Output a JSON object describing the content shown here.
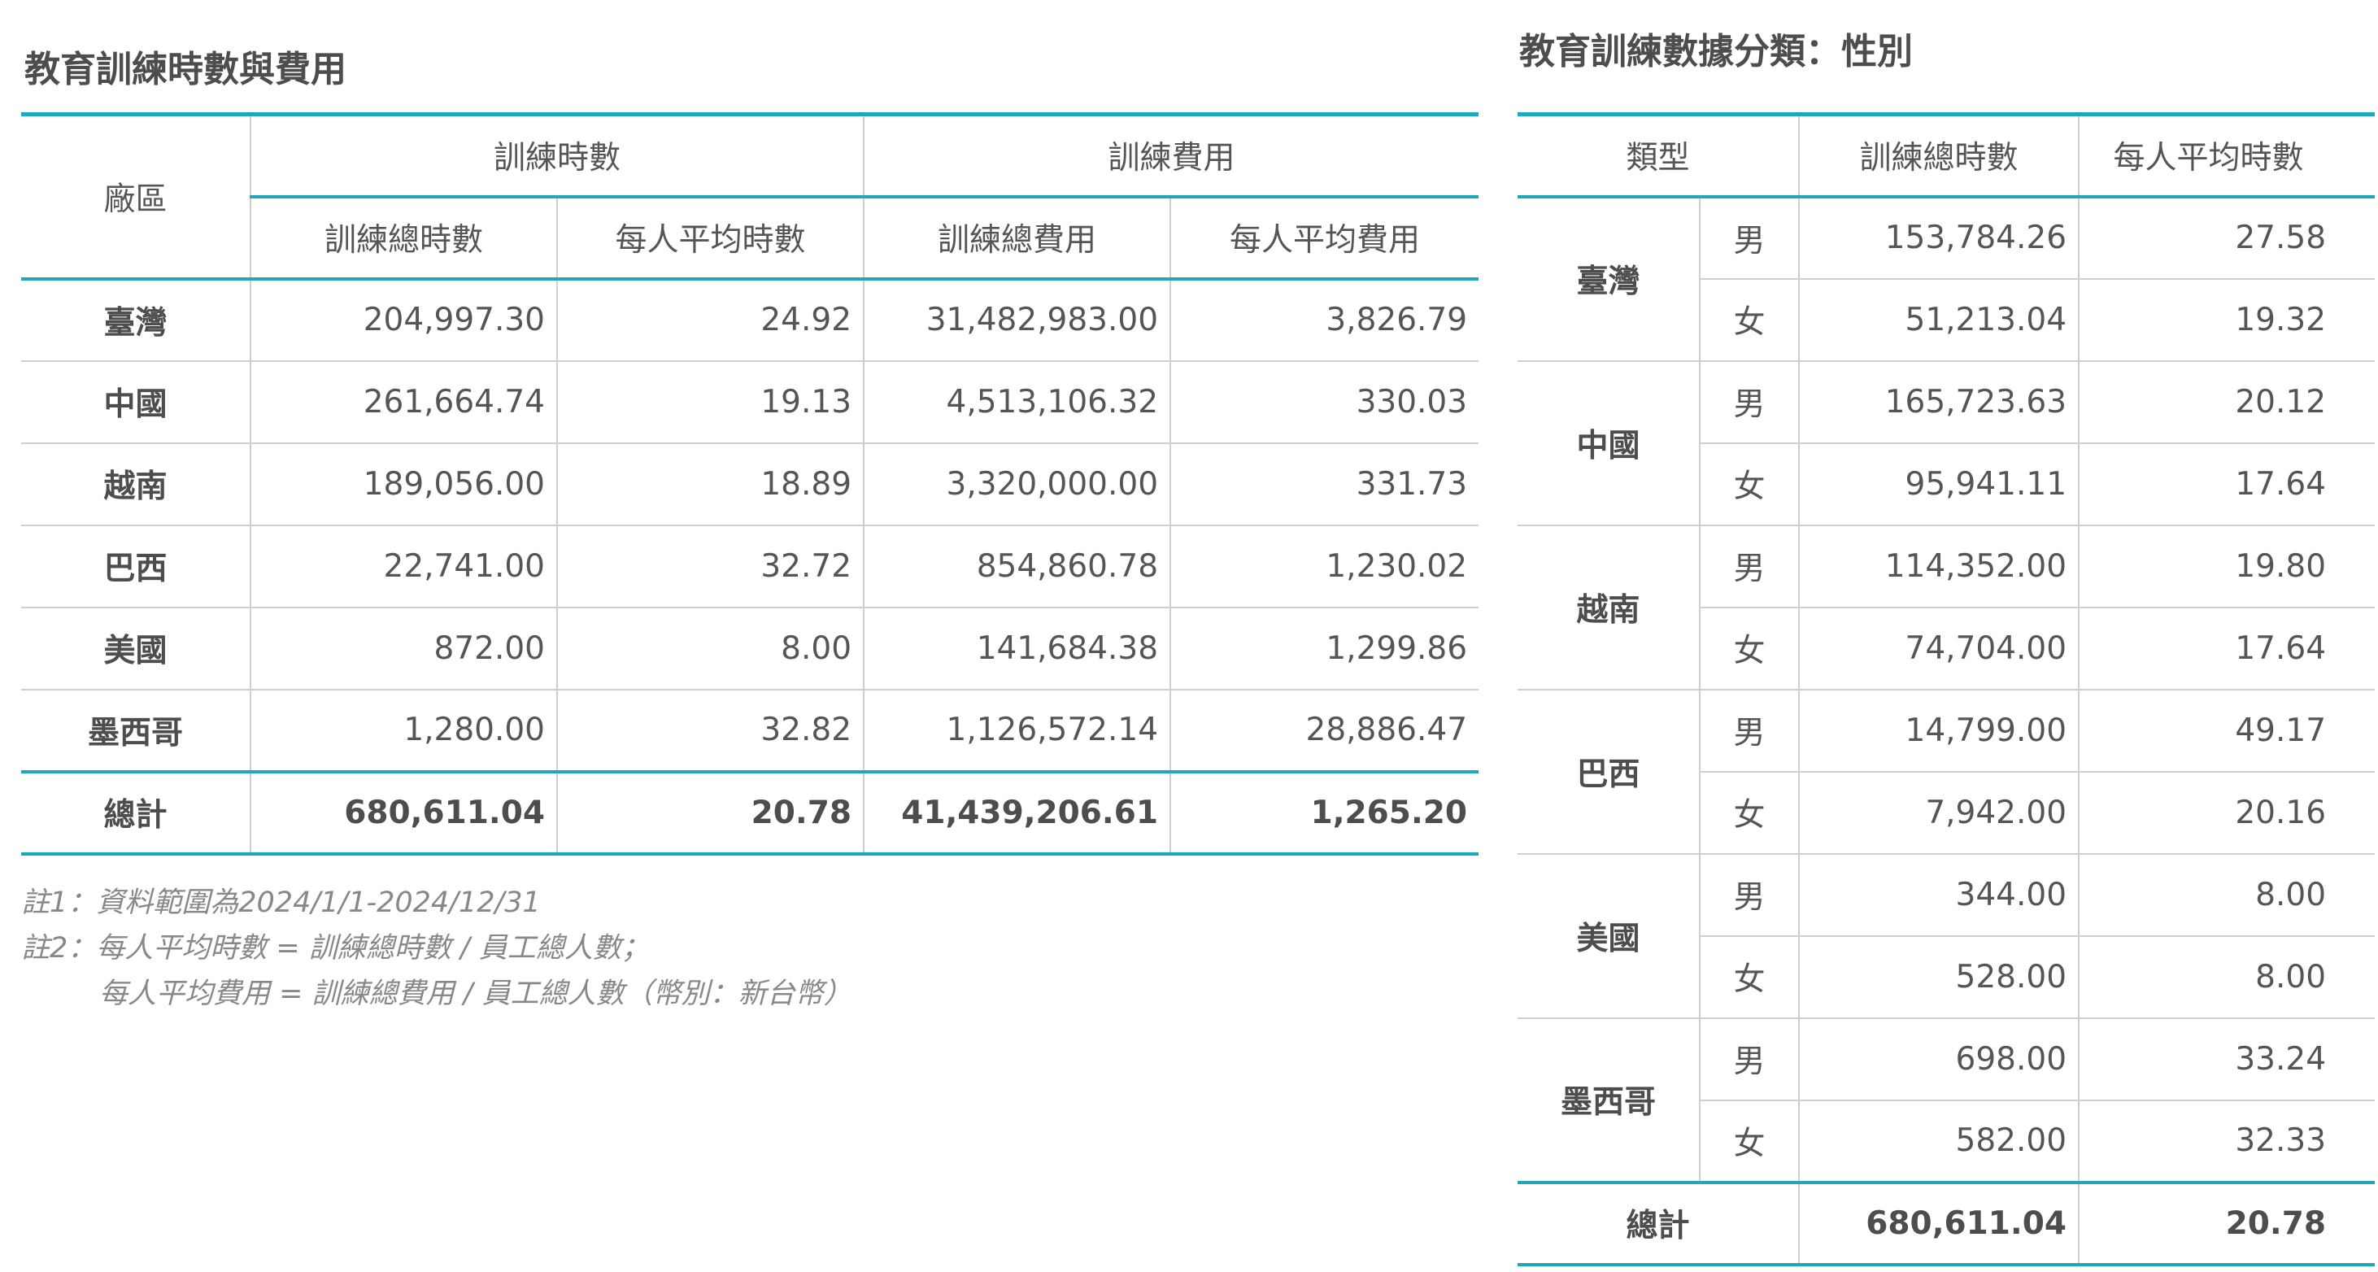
{
  "left": {
    "title": "教育訓練時數與費用",
    "header": {
      "region": "廠區",
      "group_hours": "訓練時數",
      "group_cost": "訓練費用",
      "total_hours": "訓練總時數",
      "avg_hours": "每人平均時數",
      "total_cost": "訓練總費用",
      "avg_cost": "每人平均費用"
    },
    "rows": [
      {
        "region": "臺灣",
        "total_hours": "204,997.30",
        "avg_hours": "24.92",
        "total_cost": "31,482,983.00",
        "avg_cost": "3,826.79"
      },
      {
        "region": "中國",
        "total_hours": "261,664.74",
        "avg_hours": "19.13",
        "total_cost": "4,513,106.32",
        "avg_cost": "330.03"
      },
      {
        "region": "越南",
        "total_hours": "189,056.00",
        "avg_hours": "18.89",
        "total_cost": "3,320,000.00",
        "avg_cost": "331.73"
      },
      {
        "region": "巴西",
        "total_hours": "22,741.00",
        "avg_hours": "32.72",
        "total_cost": "854,860.78",
        "avg_cost": "1,230.02"
      },
      {
        "region": "美國",
        "total_hours": "872.00",
        "avg_hours": "8.00",
        "total_cost": "141,684.38",
        "avg_cost": "1,299.86"
      },
      {
        "region": "墨西哥",
        "total_hours": "1,280.00",
        "avg_hours": "32.82",
        "total_cost": "1,126,572.14",
        "avg_cost": "28,886.47"
      }
    ],
    "total": {
      "label": "總計",
      "total_hours": "680,611.04",
      "avg_hours": "20.78",
      "total_cost": "41,439,206.61",
      "avg_cost": "1,265.20"
    },
    "notes": [
      "註1：資料範圍為2024/1/1-2024/12/31",
      "註2：每人平均時數 = 訓練總時數 / 員工總人數；",
      "每人平均費用 = 訓練總費用 / 員工總人數（幣別：新台幣）"
    ]
  },
  "right": {
    "title": "教育訓練數據分類：性別",
    "header": {
      "type": "類型",
      "total_hours": "訓練總時數",
      "avg_hours": "每人平均時數"
    },
    "groups": [
      {
        "region": "臺灣",
        "rows": [
          {
            "sex": "男",
            "total_hours": "153,784.26",
            "avg_hours": "27.58"
          },
          {
            "sex": "女",
            "total_hours": "51,213.04",
            "avg_hours": "19.32"
          }
        ]
      },
      {
        "region": "中國",
        "rows": [
          {
            "sex": "男",
            "total_hours": "165,723.63",
            "avg_hours": "20.12"
          },
          {
            "sex": "女",
            "total_hours": "95,941.11",
            "avg_hours": "17.64"
          }
        ]
      },
      {
        "region": "越南",
        "rows": [
          {
            "sex": "男",
            "total_hours": "114,352.00",
            "avg_hours": "19.80"
          },
          {
            "sex": "女",
            "total_hours": "74,704.00",
            "avg_hours": "17.64"
          }
        ]
      },
      {
        "region": "巴西",
        "rows": [
          {
            "sex": "男",
            "total_hours": "14,799.00",
            "avg_hours": "49.17"
          },
          {
            "sex": "女",
            "total_hours": "7,942.00",
            "avg_hours": "20.16"
          }
        ]
      },
      {
        "region": "美國",
        "rows": [
          {
            "sex": "男",
            "total_hours": "344.00",
            "avg_hours": "8.00"
          },
          {
            "sex": "女",
            "total_hours": "528.00",
            "avg_hours": "8.00"
          }
        ]
      },
      {
        "region": "墨西哥",
        "rows": [
          {
            "sex": "男",
            "total_hours": "698.00",
            "avg_hours": "33.24"
          },
          {
            "sex": "女",
            "total_hours": "582.00",
            "avg_hours": "32.33"
          }
        ]
      }
    ],
    "total": {
      "label": "總計",
      "total_hours": "680,611.04",
      "avg_hours": "20.78"
    }
  }
}
